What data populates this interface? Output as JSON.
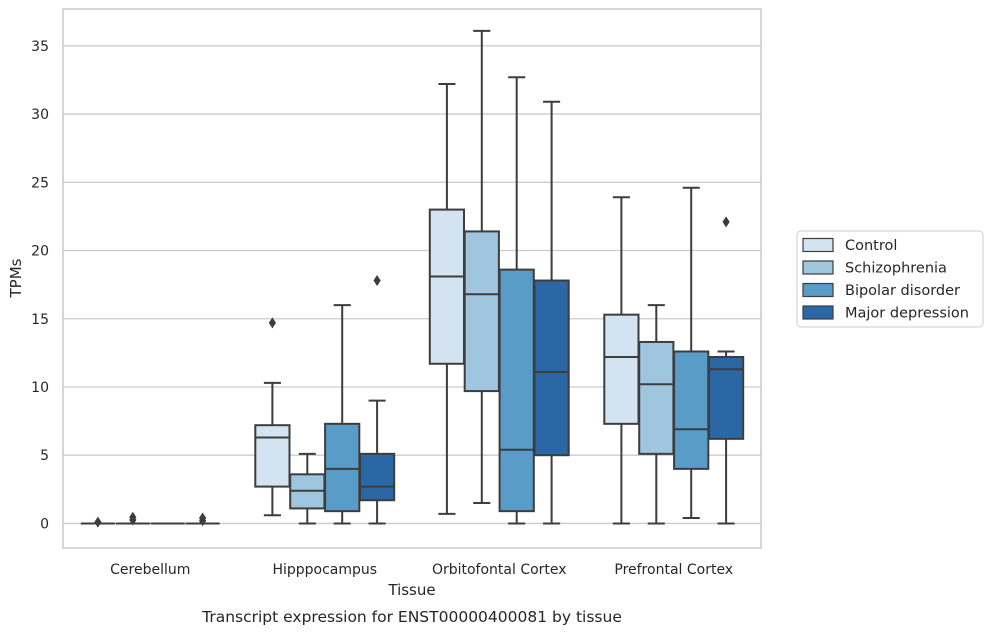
{
  "chart_data": {
    "type": "box",
    "title": "Transcript expression for ENST00000400081 by tissue",
    "xlabel": "Tissue",
    "ylabel": "TPMs",
    "ylim": [
      -1.8,
      37.7
    ],
    "yticks": [
      0,
      5,
      10,
      15,
      20,
      25,
      30,
      35
    ],
    "grid": "horizontal",
    "legend_placement": "right",
    "categories": [
      "Cerebellum",
      "Hipppocampus",
      "Orbitofontal Cortex",
      "Prefrontal Cortex"
    ],
    "series": [
      {
        "name": "Control",
        "color": "#d4e3f1",
        "boxes": [
          {
            "whislo": 0,
            "q1": 0,
            "med": 0,
            "q3": 0,
            "whishi": 0,
            "fliers": [
              0.1
            ]
          },
          {
            "whislo": 0.6,
            "q1": 2.7,
            "med": 6.3,
            "q3": 7.2,
            "whishi": 10.3,
            "fliers": [
              14.7
            ]
          },
          {
            "whislo": 0.7,
            "q1": 11.7,
            "med": 18.1,
            "q3": 23.0,
            "whishi": 32.2,
            "fliers": []
          },
          {
            "whislo": 0,
            "q1": 7.3,
            "med": 12.2,
            "q3": 15.3,
            "whishi": 23.9,
            "fliers": []
          }
        ]
      },
      {
        "name": "Schizophrenia",
        "color": "#9fc6de",
        "boxes": [
          {
            "whislo": 0,
            "q1": 0,
            "med": 0,
            "q3": 0,
            "whishi": 0,
            "fliers": [
              0.25,
              0.45
            ]
          },
          {
            "whislo": 0,
            "q1": 1.1,
            "med": 2.4,
            "q3": 3.6,
            "whishi": 5.1,
            "fliers": []
          },
          {
            "whislo": 1.5,
            "q1": 9.7,
            "med": 16.8,
            "q3": 21.4,
            "whishi": 36.1,
            "fliers": []
          },
          {
            "whislo": 0,
            "q1": 5.1,
            "med": 10.2,
            "q3": 13.3,
            "whishi": 16.0,
            "fliers": []
          }
        ]
      },
      {
        "name": "Bipolar disorder",
        "color": "#5a9cc8",
        "boxes": [
          {
            "whislo": 0,
            "q1": 0,
            "med": 0,
            "q3": 0,
            "whishi": 0,
            "fliers": []
          },
          {
            "whislo": 0,
            "q1": 0.9,
            "med": 4.0,
            "q3": 7.3,
            "whishi": 16.0,
            "fliers": []
          },
          {
            "whislo": 0,
            "q1": 0.9,
            "med": 5.4,
            "q3": 18.6,
            "whishi": 32.7,
            "fliers": []
          },
          {
            "whislo": 0.4,
            "q1": 4.0,
            "med": 6.9,
            "q3": 12.6,
            "whishi": 24.6,
            "fliers": []
          }
        ]
      },
      {
        "name": "Major depression",
        "color": "#2a67a4",
        "boxes": [
          {
            "whislo": 0,
            "q1": 0,
            "med": 0,
            "q3": 0,
            "whishi": 0,
            "fliers": [
              0.2,
              0.4
            ]
          },
          {
            "whislo": 0,
            "q1": 1.7,
            "med": 2.7,
            "q3": 5.1,
            "whishi": 9.0,
            "fliers": [
              17.8
            ]
          },
          {
            "whislo": 0,
            "q1": 5.0,
            "med": 11.1,
            "q3": 17.8,
            "whishi": 30.9,
            "fliers": []
          },
          {
            "whislo": 0,
            "q1": 6.2,
            "med": 11.3,
            "q3": 12.2,
            "whishi": 12.6,
            "fliers": [
              22.1
            ]
          }
        ]
      }
    ]
  }
}
